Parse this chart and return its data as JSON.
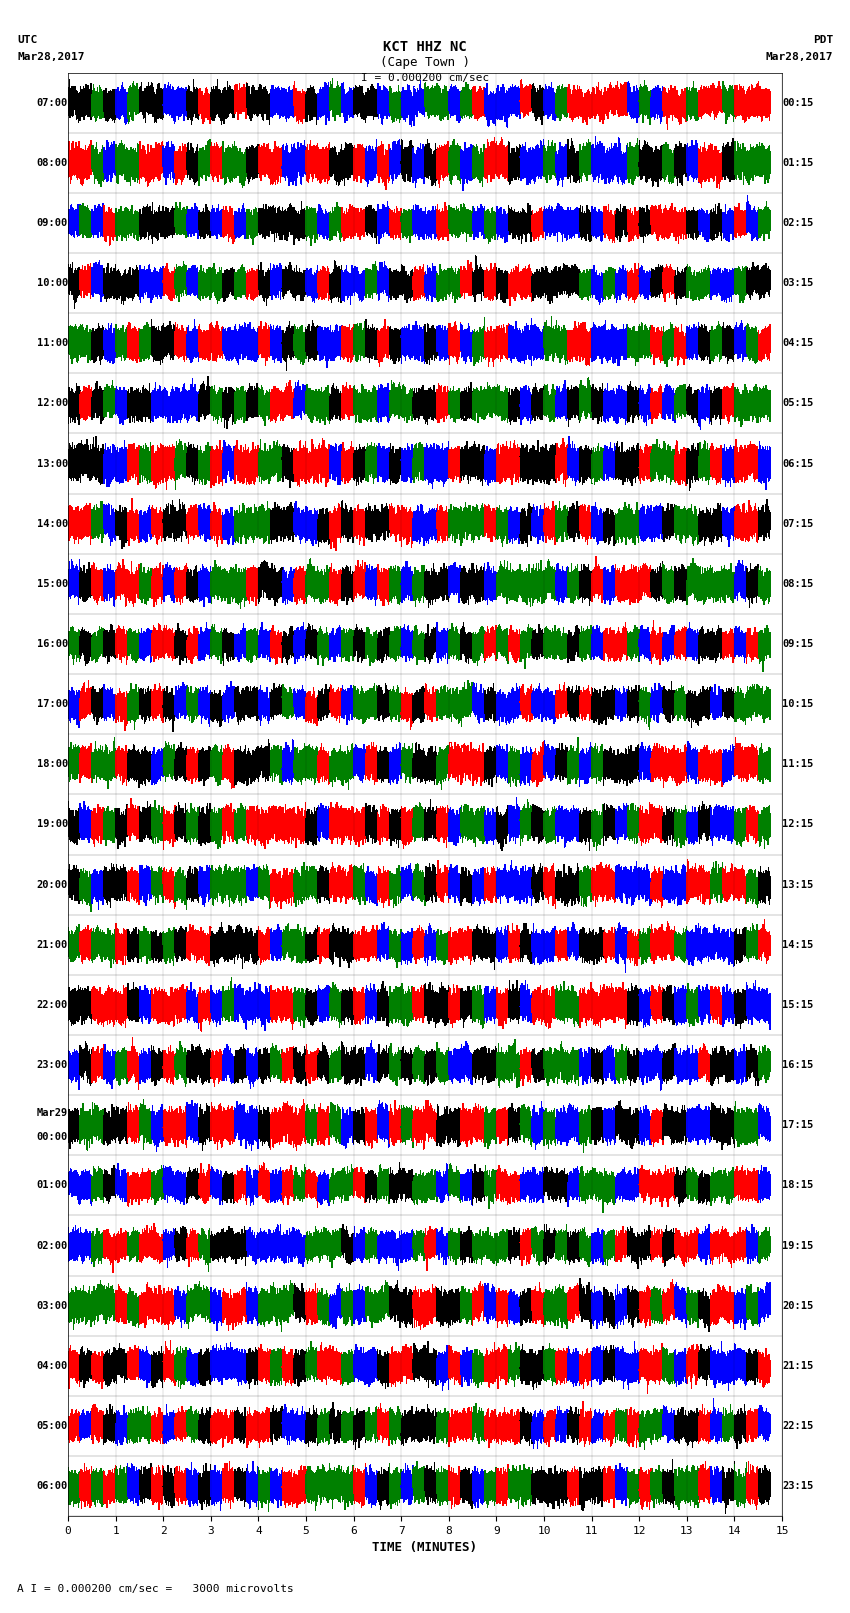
{
  "title_line1": "KCT HHZ NC",
  "title_line2": "(Cape Town )",
  "scale_label": "I = 0.000200 cm/sec",
  "left_label_top": "UTC",
  "left_label_date": "Mar28,2017",
  "right_label_top": "PDT",
  "right_label_date": "Mar28,2017",
  "bottom_label": "TIME (MINUTES)",
  "bottom_note": "A I = 0.000200 cm/sec =   3000 microvolts",
  "utc_labels": [
    "07:00",
    "08:00",
    "09:00",
    "10:00",
    "11:00",
    "12:00",
    "13:00",
    "14:00",
    "15:00",
    "16:00",
    "17:00",
    "18:00",
    "19:00",
    "20:00",
    "21:00",
    "22:00",
    "23:00",
    "Mar29\n00:00",
    "01:00",
    "02:00",
    "03:00",
    "04:00",
    "05:00",
    "06:00"
  ],
  "pdt_labels": [
    "00:15",
    "01:15",
    "02:15",
    "03:15",
    "04:15",
    "05:15",
    "06:15",
    "07:15",
    "08:15",
    "09:15",
    "10:15",
    "11:15",
    "12:15",
    "13:15",
    "14:15",
    "15:15",
    "16:15",
    "17:15",
    "18:15",
    "19:15",
    "20:15",
    "21:15",
    "22:15",
    "23:15"
  ],
  "n_rows": 24,
  "n_minutes": 15,
  "sample_rate": 100,
  "bg_color": "#ffffff",
  "trace_colors": [
    "#ff0000",
    "#0000ff",
    "#008000",
    "#000000"
  ],
  "xlim": [
    0,
    15
  ],
  "xticks": [
    0,
    1,
    2,
    3,
    4,
    5,
    6,
    7,
    8,
    9,
    10,
    11,
    12,
    13,
    14,
    15
  ]
}
